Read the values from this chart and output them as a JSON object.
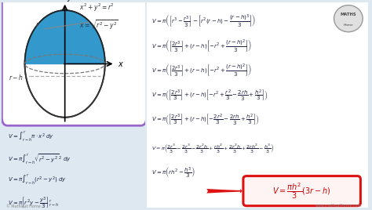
{
  "bg_color": "#dde8f0",
  "left_box_border": "#9966cc",
  "right_box_border": "#5599cc",
  "footer_left": "© Maths at Home",
  "footer_right": "www.mathsathome.com",
  "left_equations": [
    "V = \\int_{r-h}^{r} \\pi \\cdot x^2 \\; dy",
    "V = \\pi \\int_{r-h}^{r} \\sqrt{r^2 - y^2}^{\\;2} \\; dy",
    "V = \\pi \\int_{r-h}^{r} (r^2 - y^2) \\; dy",
    "V = \\pi \\left[ r^2y - \\dfrac{y^3}{3} \\right]_{r-h}^{r}"
  ],
  "right_equations": [
    "V = \\pi \\left( \\left[ r^3 - \\dfrac{r^3}{3} \\right] - \\left[ r^2(r-h) - \\dfrac{(r-h)^3}{3} \\right] \\right)",
    "V = \\pi \\left( \\left[ \\dfrac{2r^3}{3} \\right] + (r-h) \\left[ -r^2 + \\dfrac{(r-h)^2}{3} \\right] \\right)",
    "V = \\pi \\left( \\left[ \\dfrac{2r^3}{3} \\right] + (r-h) \\left[ -r^2 + \\dfrac{(r-h)^2}{3} \\right] \\right)",
    "V = \\pi \\left( \\left[ \\dfrac{2r^3}{3} \\right] + (r-h) \\left[ -r^2 + \\dfrac{r^2}{3} - \\dfrac{2rh}{3} + \\dfrac{h^2}{3} \\right] \\right)",
    "V = \\pi \\left( \\left[ \\dfrac{2r^3}{3} \\right] + (r-h) \\left[ -\\dfrac{2r^2}{3} - \\dfrac{2rh}{3} + \\dfrac{h^2}{3} \\right] \\right)",
    "V = \\pi \\left( \\dfrac{2r^3}{3} - \\dfrac{2r^3}{3} - \\dfrac{2r^2h}{3} + \\dfrac{rh^2}{3} + \\dfrac{2r^2h}{3} + \\dfrac{2rh^2}{3} - \\dfrac{h^3}{3} \\right)",
    "V = \\pi \\left( rh^2 - \\dfrac{h^3}{3} \\right)"
  ],
  "final_formula": "V = \\dfrac{\\pi h^2}{3}(3r - h)"
}
